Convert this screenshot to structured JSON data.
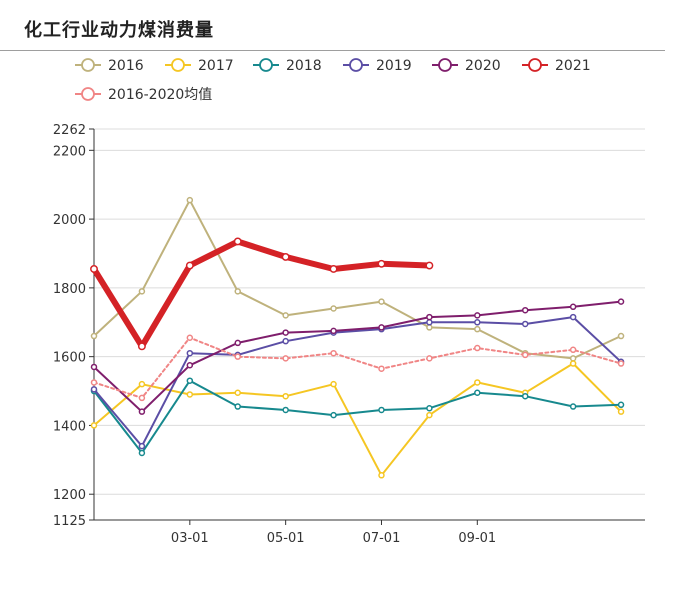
{
  "page_title": "化工行业动力煤消费量",
  "chart_data": {
    "type": "line",
    "x": [
      "01-01",
      "02-01",
      "03-01",
      "04-01",
      "05-01",
      "06-01",
      "07-01",
      "08-01",
      "09-01",
      "10-01",
      "11-01",
      "12-01"
    ],
    "xtick_labels": [
      "03-01",
      "05-01",
      "07-01",
      "09-01"
    ],
    "xtick_indices": [
      2,
      4,
      6,
      8
    ],
    "ylim": [
      1125,
      2262
    ],
    "yticks": [
      1125,
      1200,
      1400,
      1600,
      1800,
      2000,
      2200,
      2262
    ],
    "grid": "horizontal",
    "legend_position": "top",
    "series": [
      {
        "name": "2016",
        "color": "#bfb27c",
        "width": 2,
        "dash": "",
        "values": [
          1660,
          1790,
          2055,
          1790,
          1720,
          1740,
          1760,
          1685,
          1680,
          1610,
          1595,
          1660
        ]
      },
      {
        "name": "2017",
        "color": "#f5c623",
        "width": 2,
        "dash": "",
        "values": [
          1400,
          1520,
          1490,
          1495,
          1485,
          1520,
          1255,
          1430,
          1525,
          1495,
          1580,
          1440
        ]
      },
      {
        "name": "2018",
        "color": "#17898e",
        "width": 2,
        "dash": "",
        "values": [
          1500,
          1320,
          1530,
          1455,
          1445,
          1430,
          1445,
          1450,
          1495,
          1485,
          1455,
          1460
        ]
      },
      {
        "name": "2019",
        "color": "#5b4ea5",
        "width": 2,
        "dash": "",
        "values": [
          1505,
          1340,
          1610,
          1605,
          1645,
          1670,
          1680,
          1700,
          1700,
          1695,
          1715,
          1585
        ]
      },
      {
        "name": "2020",
        "color": "#7f1e6c",
        "width": 2,
        "dash": "",
        "values": [
          1570,
          1440,
          1575,
          1640,
          1670,
          1675,
          1685,
          1715,
          1720,
          1735,
          1745,
          1760
        ]
      },
      {
        "name": "2021",
        "color": "#d42226",
        "width": 6,
        "dash": "",
        "values": [
          1855,
          1630,
          1865,
          1935,
          1890,
          1855,
          1870,
          1865,
          null,
          null,
          null,
          null
        ]
      },
      {
        "name": "2016-2020均值",
        "color": "#f08585",
        "width": 2,
        "dash": "3,3",
        "values": [
          1525,
          1480,
          1655,
          1600,
          1595,
          1610,
          1565,
          1595,
          1625,
          1605,
          1620,
          1580
        ]
      }
    ]
  }
}
